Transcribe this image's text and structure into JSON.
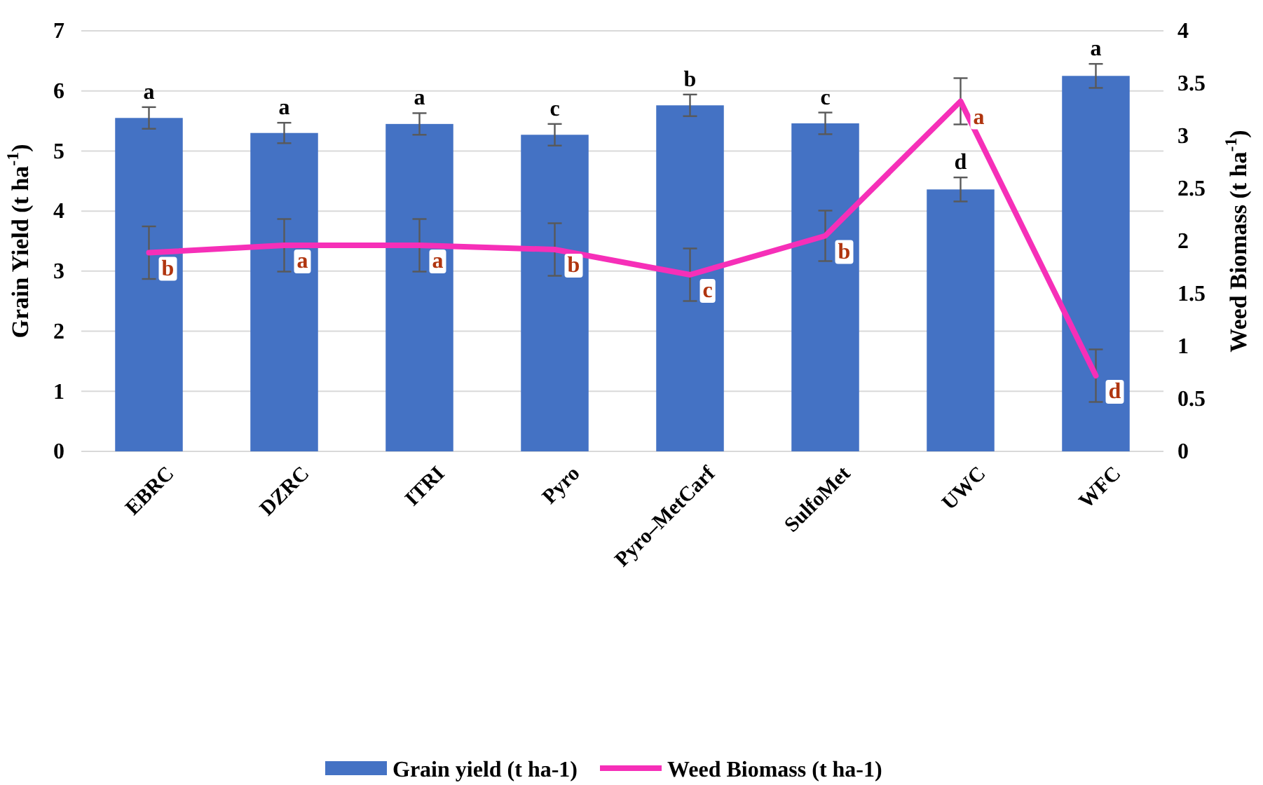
{
  "chart_data": {
    "type": "bar",
    "categories": [
      "EBRC",
      "DZRC",
      "ITRI",
      "Pyro",
      "Pyro–MetCarf",
      "SulfoMet",
      "UWC",
      "WFC"
    ],
    "ylabel": "Grain Yield (t ha$^{-1}$)",
    "y2label": "Weed Biomass (t ha$^{-1}$)",
    "ylim": [
      0,
      7
    ],
    "yticks": [
      0,
      1,
      2,
      3,
      4,
      5,
      6,
      7
    ],
    "y2lim": [
      0,
      4
    ],
    "y2ticks": [
      0,
      0.5,
      1,
      1.5,
      2,
      2.5,
      3,
      3.5,
      4
    ],
    "grid": "y",
    "legend": "bottom",
    "series": [
      {
        "name": "Grain yield (t ha-1)",
        "color": "#4472c4",
        "values": [
          5.55,
          5.3,
          5.45,
          5.27,
          5.76,
          5.46,
          4.36,
          6.25
        ],
        "errors": [
          0.18,
          0.17,
          0.18,
          0.18,
          0.18,
          0.18,
          0.2,
          0.2
        ]
      },
      {
        "name": "Weed Biomass (t ha-1)",
        "type": "line",
        "axis": "y2",
        "color": "#f62fb8",
        "values": [
          1.89,
          1.96,
          1.96,
          1.92,
          1.68,
          2.05,
          3.33,
          0.72
        ],
        "errors": [
          0.25,
          0.25,
          0.25,
          0.25,
          0.25,
          0.24,
          0.22,
          0.25
        ]
      }
    ],
    "annotations": [
      {
        "text": "a",
        "x": "EBRC",
        "y": 5.55
      },
      {
        "text": "a",
        "x": "DZRC",
        "y": 5.3
      },
      {
        "text": "a",
        "x": "ITRI",
        "y": 5.45
      },
      {
        "text": "c",
        "x": "Pyro",
        "y": 5.27
      },
      {
        "text": "b",
        "x": "Pyro–MetCarf",
        "y": 5.76
      },
      {
        "text": "c",
        "x": "SulfoMet",
        "y": 5.46
      },
      {
        "text": "d",
        "x": "UWC",
        "y": 4.36
      },
      {
        "text": "a",
        "x": "WFC",
        "y": 6.25
      },
      "b",
      "a",
      "a",
      "b",
      "c",
      "b",
      "a",
      "d"
    ]
  }
}
